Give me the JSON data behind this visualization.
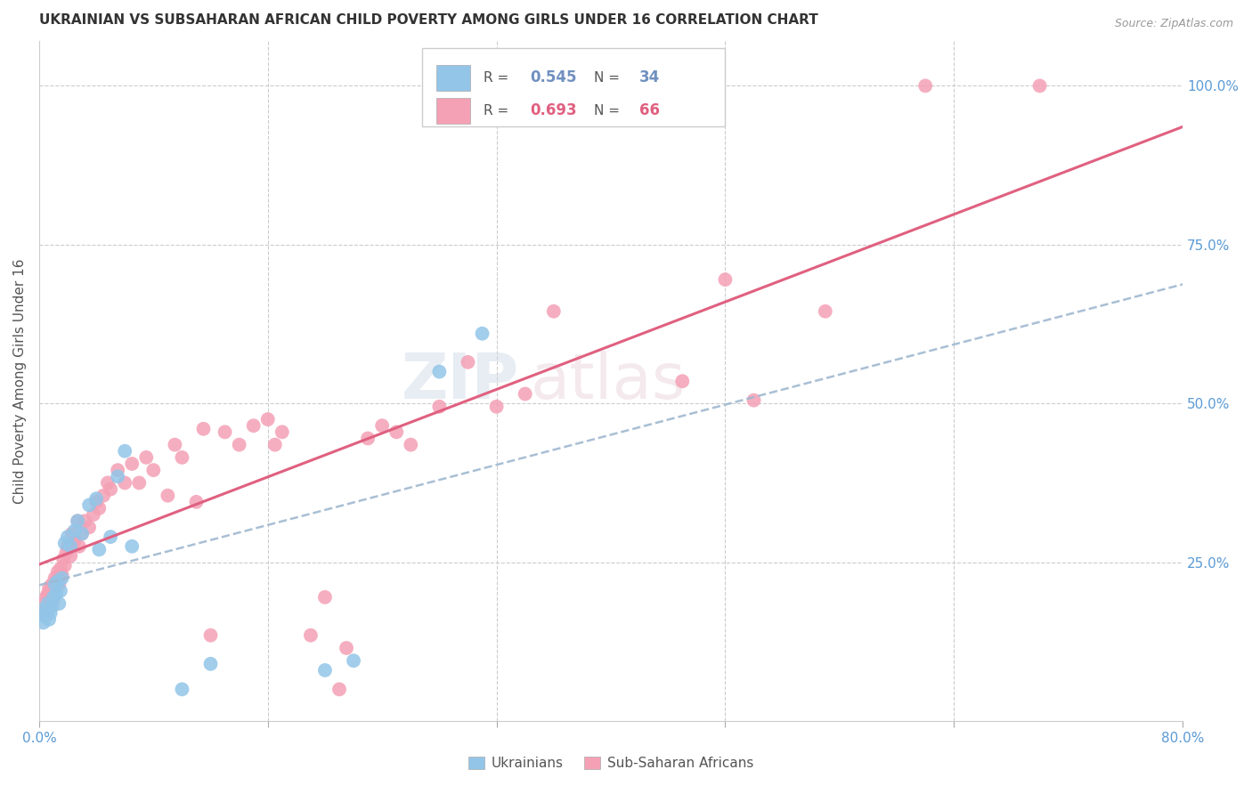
{
  "title": "UKRAINIAN VS SUBSAHARAN AFRICAN CHILD POVERTY AMONG GIRLS UNDER 16 CORRELATION CHART",
  "source": "Source: ZipAtlas.com",
  "ylabel": "Child Poverty Among Girls Under 16",
  "ylim": [
    0.0,
    1.07
  ],
  "xlim": [
    0.0,
    0.8
  ],
  "R_ukrainian": "0.545",
  "N_ukrainian": "34",
  "R_subsaharan": "0.693",
  "N_subsaharan": "66",
  "ukrainian_color": "#92C5E8",
  "subsaharan_color": "#F4A0B5",
  "trendline_ukrainian_color": "#7090C0",
  "trendline_subsaharan_color": "#E06080",
  "watermark": "ZIPatlas",
  "ukrainian_points": [
    [
      0.002,
      0.175
    ],
    [
      0.003,
      0.155
    ],
    [
      0.004,
      0.165
    ],
    [
      0.005,
      0.17
    ],
    [
      0.006,
      0.185
    ],
    [
      0.007,
      0.16
    ],
    [
      0.008,
      0.17
    ],
    [
      0.009,
      0.18
    ],
    [
      0.01,
      0.195
    ],
    [
      0.011,
      0.215
    ],
    [
      0.012,
      0.2
    ],
    [
      0.013,
      0.22
    ],
    [
      0.014,
      0.185
    ],
    [
      0.015,
      0.205
    ],
    [
      0.016,
      0.225
    ],
    [
      0.018,
      0.28
    ],
    [
      0.02,
      0.29
    ],
    [
      0.022,
      0.275
    ],
    [
      0.025,
      0.3
    ],
    [
      0.027,
      0.315
    ],
    [
      0.03,
      0.295
    ],
    [
      0.035,
      0.34
    ],
    [
      0.04,
      0.35
    ],
    [
      0.042,
      0.27
    ],
    [
      0.05,
      0.29
    ],
    [
      0.055,
      0.385
    ],
    [
      0.06,
      0.425
    ],
    [
      0.065,
      0.275
    ],
    [
      0.1,
      0.05
    ],
    [
      0.12,
      0.09
    ],
    [
      0.2,
      0.08
    ],
    [
      0.22,
      0.095
    ],
    [
      0.28,
      0.55
    ],
    [
      0.31,
      0.61
    ]
  ],
  "subsaharan_points": [
    [
      0.002,
      0.17
    ],
    [
      0.004,
      0.185
    ],
    [
      0.005,
      0.195
    ],
    [
      0.006,
      0.2
    ],
    [
      0.007,
      0.21
    ],
    [
      0.008,
      0.205
    ],
    [
      0.009,
      0.215
    ],
    [
      0.01,
      0.19
    ],
    [
      0.011,
      0.225
    ],
    [
      0.012,
      0.22
    ],
    [
      0.013,
      0.235
    ],
    [
      0.014,
      0.215
    ],
    [
      0.015,
      0.24
    ],
    [
      0.016,
      0.23
    ],
    [
      0.017,
      0.255
    ],
    [
      0.018,
      0.245
    ],
    [
      0.019,
      0.265
    ],
    [
      0.02,
      0.275
    ],
    [
      0.022,
      0.26
    ],
    [
      0.023,
      0.295
    ],
    [
      0.024,
      0.28
    ],
    [
      0.025,
      0.285
    ],
    [
      0.027,
      0.315
    ],
    [
      0.028,
      0.275
    ],
    [
      0.03,
      0.295
    ],
    [
      0.032,
      0.315
    ],
    [
      0.035,
      0.305
    ],
    [
      0.038,
      0.325
    ],
    [
      0.04,
      0.345
    ],
    [
      0.042,
      0.335
    ],
    [
      0.045,
      0.355
    ],
    [
      0.048,
      0.375
    ],
    [
      0.05,
      0.365
    ],
    [
      0.055,
      0.395
    ],
    [
      0.06,
      0.375
    ],
    [
      0.065,
      0.405
    ],
    [
      0.07,
      0.375
    ],
    [
      0.075,
      0.415
    ],
    [
      0.08,
      0.395
    ],
    [
      0.09,
      0.355
    ],
    [
      0.095,
      0.435
    ],
    [
      0.1,
      0.415
    ],
    [
      0.11,
      0.345
    ],
    [
      0.115,
      0.46
    ],
    [
      0.12,
      0.135
    ],
    [
      0.13,
      0.455
    ],
    [
      0.14,
      0.435
    ],
    [
      0.15,
      0.465
    ],
    [
      0.16,
      0.475
    ],
    [
      0.165,
      0.435
    ],
    [
      0.17,
      0.455
    ],
    [
      0.19,
      0.135
    ],
    [
      0.2,
      0.195
    ],
    [
      0.21,
      0.05
    ],
    [
      0.215,
      0.115
    ],
    [
      0.23,
      0.445
    ],
    [
      0.24,
      0.465
    ],
    [
      0.25,
      0.455
    ],
    [
      0.26,
      0.435
    ],
    [
      0.28,
      0.495
    ],
    [
      0.3,
      0.565
    ],
    [
      0.32,
      0.495
    ],
    [
      0.34,
      0.515
    ],
    [
      0.36,
      0.645
    ],
    [
      0.45,
      0.535
    ],
    [
      0.5,
      0.505
    ]
  ],
  "subsaharan_outlier_points": [
    [
      0.62,
      1.0
    ],
    [
      0.7,
      1.0
    ],
    [
      0.55,
      0.645
    ],
    [
      0.48,
      0.695
    ]
  ],
  "grid_yticks": [
    0.25,
    0.5,
    0.75,
    1.0
  ],
  "grid_xticks": [
    0.16,
    0.32,
    0.48,
    0.64
  ],
  "xtick_labels": [
    "0.0%",
    "",
    "",
    "",
    "",
    "80.0%"
  ],
  "xtick_positions": [
    0.0,
    0.16,
    0.32,
    0.48,
    0.64,
    0.8
  ],
  "ytick_right_labels": [
    "",
    "25.0%",
    "50.0%",
    "75.0%",
    "100.0%"
  ],
  "ytick_right_positions": [
    0.0,
    0.25,
    0.5,
    0.75,
    1.0
  ]
}
